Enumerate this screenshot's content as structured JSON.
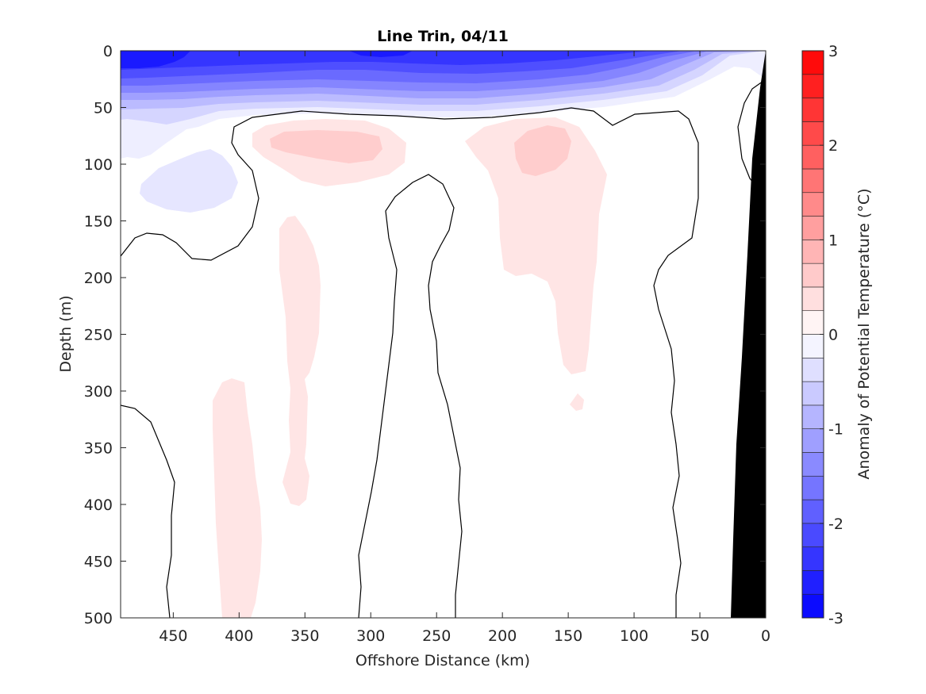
{
  "chart_data": {
    "type": "heatmap",
    "subtype": "filled-contour",
    "title": "Line Trin, 04/11",
    "xlabel": "Offshore Distance (km)",
    "ylabel": "Depth (m)",
    "xlim": [
      490,
      0
    ],
    "ylim": [
      0,
      500
    ],
    "x_reversed": true,
    "y_reversed": true,
    "xticks": [
      450,
      400,
      350,
      300,
      250,
      200,
      150,
      100,
      50,
      0
    ],
    "yticks": [
      0,
      50,
      100,
      150,
      200,
      250,
      300,
      350,
      400,
      450,
      500
    ],
    "colorbar": {
      "label": "Anomaly of Potential Temperature (°C)",
      "range": [
        -3,
        3
      ],
      "step": 0.25,
      "ticks": [
        3,
        2,
        1,
        0,
        -1,
        -2,
        -3
      ],
      "colormap": "blue-white-red",
      "low_color": "#0000ff",
      "high_color": "#ff0000"
    },
    "zero_contour": "black line",
    "bathymetry_color": "#000000",
    "features": [
      {
        "name": "surface cold layer",
        "anomaly_range": [
          -3,
          0
        ],
        "depth_range": [
          0,
          65
        ],
        "x_range": [
          490,
          0
        ]
      },
      {
        "name": "cold patch",
        "anomaly_range": [
          -0.5,
          -0.25
        ],
        "depth_range": [
          85,
          140
        ],
        "x_range": [
          465,
          400
        ]
      },
      {
        "name": "warm core west",
        "anomaly_range": [
          0.25,
          0.75
        ],
        "depth_range": [
          60,
          115
        ],
        "x_range": [
          380,
          275
        ]
      },
      {
        "name": "warm core east",
        "anomaly_range": [
          0.25,
          0.75
        ],
        "depth_range": [
          60,
          300
        ],
        "x_range": [
          225,
          118
        ]
      },
      {
        "name": "warm column 350 km",
        "anomaly_range": [
          0,
          0.5
        ],
        "depth_range": [
          145,
          400
        ],
        "x_range": [
          370,
          335
        ]
      },
      {
        "name": "warm column 400 km",
        "anomaly_range": [
          0,
          0.5
        ],
        "depth_range": [
          290,
          500
        ],
        "x_range": [
          420,
          380
        ]
      }
    ]
  }
}
